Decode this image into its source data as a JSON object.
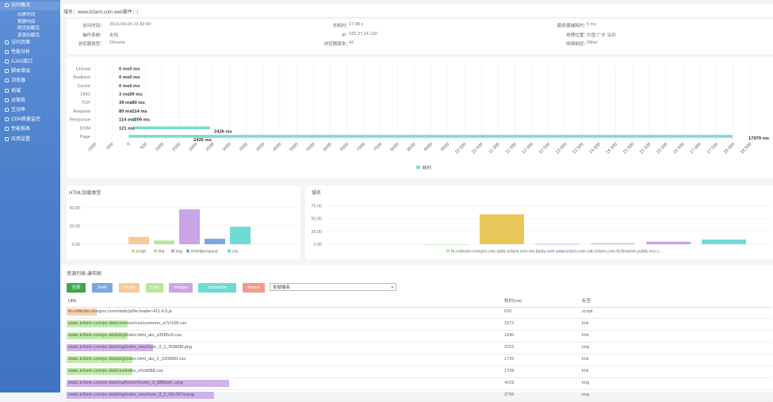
{
  "sidebar": {
    "items": [
      {
        "label": "访问概况",
        "type": "main",
        "icon": "square-icon",
        "active": true
      },
      {
        "label": "白屏时间",
        "type": "sub"
      },
      {
        "label": "首屏时间",
        "type": "sub"
      },
      {
        "label": "网页加载完",
        "type": "sub"
      },
      {
        "label": "资源加载完",
        "type": "sub"
      },
      {
        "label": "访问页面",
        "type": "main",
        "icon": "file-icon"
      },
      {
        "label": "性能分析",
        "type": "main",
        "icon": "chart-icon"
      },
      {
        "label": "AJAX接口",
        "type": "main",
        "icon": "link-icon"
      },
      {
        "label": "脚本错误",
        "type": "main",
        "icon": "bug-icon"
      },
      {
        "label": "浏览器",
        "type": "main",
        "icon": "browser-icon"
      },
      {
        "label": "地域",
        "type": "main",
        "icon": "map-pin-icon"
      },
      {
        "label": "运营商",
        "type": "main",
        "icon": "signal-icon"
      },
      {
        "label": "互动率",
        "type": "main",
        "icon": "pointer-icon"
      },
      {
        "label": "CDN质量监控",
        "type": "main",
        "icon": "cdn-icon"
      },
      {
        "label": "性能报表",
        "type": "main",
        "icon": "report-icon"
      },
      {
        "label": "应用设置",
        "type": "main",
        "icon": "gear-icon"
      }
    ]
  },
  "header": {
    "text": "域名：www.tcfarm.com    web事件：/"
  },
  "info": {
    "col1": [
      {
        "label": "访问时间：",
        "value": "2016-09-04 23:43:40"
      },
      {
        "label": "操作系统：",
        "value": "未知"
      },
      {
        "label": "浏览器类型：",
        "value": "Chrome"
      }
    ],
    "col2": [
      {
        "label": "总耗时：",
        "value": "17.98 s"
      },
      {
        "label": "IP：",
        "value": "183.37.24.130"
      },
      {
        "label": "浏览器版本：",
        "value": "42"
      }
    ],
    "col3": [
      {
        "label": "服务器端耗时：",
        "value": "0 ms"
      },
      {
        "label": "地理位置：",
        "value": "中国 广东 深圳"
      },
      {
        "label": "网络制式：",
        "value": "Other"
      }
    ]
  },
  "waterfall_labels": [
    {
      "start": "0 ms",
      "dur": "0 ms",
      "text": "0 ms0 ms"
    },
    {
      "start": "0 ms",
      "dur": "0 ms",
      "text": "0 ms0 ms"
    },
    {
      "start": "0 ms",
      "dur": "0 ms",
      "text": "0 ms0 ms"
    },
    {
      "start": "3 ms",
      "dur": "39 ms",
      "text": "3 ms39 ms"
    },
    {
      "start": "39 ms",
      "dur": "80 ms",
      "text": "39 ms80 ms"
    },
    {
      "start": "80 ms",
      "dur": "114 ms",
      "text": "80 ms114 ms"
    },
    {
      "start": "114 ms",
      "dur": "209 ms",
      "text": "114 ms209 ms"
    },
    {
      "start": "121 ms",
      "dur": "2426 ms",
      "text": "121 ms"
    },
    {
      "start": "2426 ms",
      "dur": "17979 ms",
      "text": "2426 ms"
    }
  ],
  "extra_labels": {
    "dom_end": "2426 ms",
    "page_end": "17979 ms"
  },
  "chart_data": [
    {
      "type": "bar",
      "orientation": "horizontal",
      "stacked": true,
      "categories": [
        "Unload",
        "Redirect",
        "Cache",
        "DNS",
        "TCP",
        "Request",
        "Response",
        "DOM",
        "Page"
      ],
      "series": [
        {
          "name": "",
          "values": [
            0,
            0,
            0,
            3,
            39,
            80,
            114,
            121,
            0
          ],
          "role": "offset"
        },
        {
          "name": "耗时",
          "values": [
            0,
            0,
            0,
            36,
            41,
            34,
            95,
            2305,
            17979
          ]
        }
      ],
      "xticks": [
        "-1000",
        "-500",
        "0",
        "500",
        "1000",
        "1500",
        "2000",
        "2500",
        "3000",
        "3500",
        "4000",
        "4500",
        "5000",
        "5500",
        "6000",
        "6500",
        "7000",
        "7500",
        "8000",
        "8500",
        "9000",
        "9500",
        "10 000",
        "10 500",
        "11 000",
        "11 500",
        "12 000",
        "12 500",
        "13 000",
        "13 500",
        "14 000",
        "14 500",
        "15 000",
        "15 500",
        "16 000",
        "16 500",
        "17 000",
        "17 500",
        "18 000",
        "18 500"
      ],
      "xlim": [
        -1000,
        18500
      ],
      "legend": "bottom-center",
      "color": "#7fdbd3"
    },
    {
      "type": "bar",
      "title": "HTML加载类型",
      "categories": [
        "script",
        "link",
        "img",
        "xmlhttprequest",
        "css"
      ],
      "values": [
        8,
        4,
        38,
        6,
        19
      ],
      "colors": [
        "#f8c99a",
        "#b7e79a",
        "#c9a4e6",
        "#7aa7e0",
        "#6edbd3"
      ],
      "yticks": [
        "0.00",
        "20.00",
        "40.00"
      ],
      "ylim": [
        0,
        45
      ],
      "legend": "bottom-center"
    },
    {
      "type": "bar",
      "title": "域名",
      "categories": [
        "fe-collector.cnexprs.com",
        "static.tcfarm.com",
        "hm.baidu.com",
        "www.tcfarm.com",
        "cdn.tcfarm.com",
        "fd-firestore-public.ecs-c..."
      ],
      "values": [
        0,
        58,
        0.5,
        2,
        5,
        9
      ],
      "colors": [
        "#b7e79a",
        "#e8c65a",
        "#7aa7e0",
        "#9ec9ef",
        "#c9a4e6",
        "#6edbd3"
      ],
      "yticks": [
        "0.00",
        "25.00",
        "50.00",
        "75.00"
      ],
      "ylim": [
        0,
        80
      ],
      "legend": "bottom-center"
    }
  ],
  "legend_main": "耗时",
  "legend_left": [
    "script",
    "link",
    "img",
    "xmlhttprequest",
    "css"
  ],
  "legend_right": "fe-collector.cnexprs.com  static.tcfarm.com  hm.baidu.com  www.tcfarm.com  cdn.tcfarm.com  fd-firestore-public.ecs-c...",
  "resources": {
    "title": "资源列表-瀑布图",
    "filters": [
      {
        "label": "全部",
        "color": "#3fa64a"
      },
      {
        "label": "XHR",
        "color": "#7aa7e0"
      },
      {
        "label": "Script",
        "color": "#f8c99a"
      },
      {
        "label": "Link",
        "color": "#b7e79a"
      },
      {
        "label": "Images",
        "color": "#c9a4e6"
      },
      {
        "label": "IframeXhr",
        "color": "#6edbd3"
      },
      {
        "label": "Iframe",
        "color": "#f39b8b"
      }
    ],
    "select_value": "全部域名",
    "columns": {
      "url": "URL",
      "time": "耗时(ms)",
      "type": "标签"
    },
    "rows": [
      {
        "url": "fe-collector.cnexprs.com/static/js/fw-loader-411.4.5.js",
        "time": "626",
        "type": "script",
        "color": "#f8c99a",
        "bar": 0.06
      },
      {
        "url": "static.tcfarm.com/pc-dist/common/css/common_e7c/168.css",
        "time": "1672",
        "type": "link",
        "color": "#b7e79a",
        "bar": 0.12
      },
      {
        "url": "static.tcfarm.com/pc-dist/pkg/index.html_aio_x3585c6.css",
        "time": "1640",
        "type": "link",
        "color": "#b7e79a",
        "bar": 0.12
      },
      {
        "url": "static.tcfarm.com/pc-dist/img/index_new/icon_3_1_f10b08f.png",
        "time": "2252",
        "type": "img",
        "color": "#c9a4e6",
        "bar": 0.17
      },
      {
        "url": "static.tcfarm.com/pc-dist/pkg/index.html_aio_2_23/9660.css",
        "time": "1720",
        "type": "link",
        "color": "#b7e79a",
        "bar": 0.13
      },
      {
        "url": "static.tcfarm.com/pc-dist/css/index_e5cd088.css",
        "time": "1708",
        "type": "link",
        "color": "#b7e79a",
        "bar": 0.13
      },
      {
        "url": "static.tcfarm.com/pc-dist/img/footer/footer_3_5889a4...png",
        "time": "4169",
        "type": "img",
        "color": "#c9a4e6",
        "bar": 0.32
      },
      {
        "url": "static.tcfarm.com/pc-dist/img/index_new/icon_3_2_66c367a.png",
        "time": "3795",
        "type": "img",
        "color": "#c9a4e6",
        "bar": 0.29
      }
    ]
  }
}
